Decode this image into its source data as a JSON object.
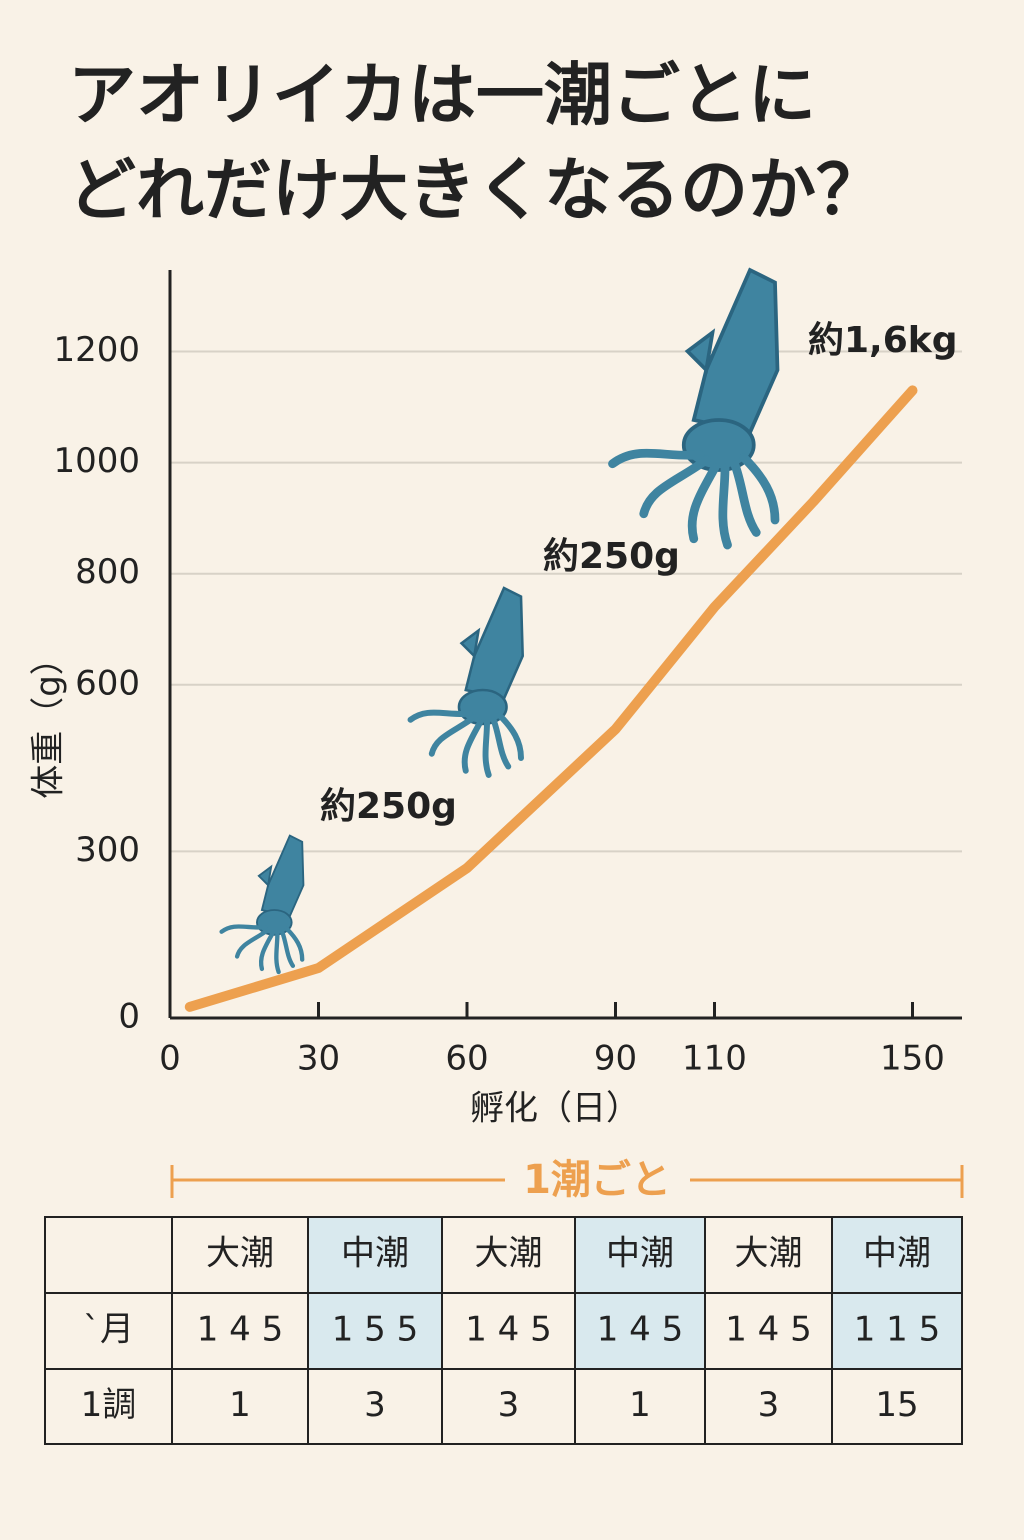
{
  "header": {
    "title": [
      "アオリイカは一潮ごとに",
      "どれだけ大きくなるのか？"
    ]
  },
  "chart_data": {
    "type": "line",
    "y_label": "体重（g）",
    "x_label": "孵化（日）",
    "x": [
      4,
      30,
      60,
      90,
      110,
      130,
      150
    ],
    "series": [
      {
        "name": "体重",
        "color": "#eda04f",
        "values": [
          20,
          90,
          270,
          520,
          740,
          930,
          1130
        ]
      }
    ],
    "xlim": [
      0,
      160
    ],
    "xticks": [
      0,
      30,
      60,
      90,
      110,
      150
    ],
    "ylim": [
      0,
      1300
    ],
    "yticks": [
      0,
      300,
      600,
      800,
      1000,
      1200
    ],
    "grid": true,
    "annotations": [
      "約250g",
      "約250g",
      "約1,6kg"
    ]
  },
  "bracket": {
    "label": "1潮ごと"
  },
  "table": {
    "rows": [
      [
        "",
        "大潮",
        "中潮",
        "大潮",
        "中潮",
        "大潮",
        "中潮"
      ],
      [
        "`月",
        "1 4 5",
        "1 5 5",
        "1 4 5",
        "1 4 5",
        "1 4 5",
        "1 1 5"
      ],
      [
        "1調",
        "1",
        "3",
        "3",
        "1",
        "3",
        "15"
      ]
    ]
  }
}
